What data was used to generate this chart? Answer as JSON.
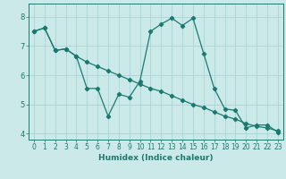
{
  "title": "",
  "xlabel": "Humidex (Indice chaleur)",
  "ylabel": "",
  "background_color": "#cce9e9",
  "line_color": "#1a7a6e",
  "grid_color": "#aad4d4",
  "xlim": [
    -0.5,
    23.5
  ],
  "ylim": [
    3.8,
    8.45
  ],
  "yticks": [
    4,
    5,
    6,
    7,
    8
  ],
  "xticks": [
    0,
    1,
    2,
    3,
    4,
    5,
    6,
    7,
    8,
    9,
    10,
    11,
    12,
    13,
    14,
    15,
    16,
    17,
    18,
    19,
    20,
    21,
    22,
    23
  ],
  "series1": {
    "x": [
      0,
      1,
      2,
      3,
      4,
      5,
      6,
      7,
      8,
      9,
      10,
      11,
      12,
      13,
      14,
      15,
      16,
      17,
      18,
      19,
      20,
      21,
      22,
      23
    ],
    "y": [
      7.5,
      7.62,
      6.85,
      6.9,
      6.65,
      6.45,
      6.3,
      6.15,
      6.0,
      5.85,
      5.7,
      5.55,
      5.45,
      5.3,
      5.15,
      5.0,
      4.9,
      4.75,
      4.6,
      4.5,
      4.35,
      4.25,
      4.2,
      4.1
    ]
  },
  "series2": {
    "x": [
      0,
      1,
      2,
      3,
      4,
      5,
      6,
      7,
      8,
      9,
      10,
      11,
      12,
      13,
      14,
      15,
      16,
      17,
      18,
      19,
      20,
      21,
      22,
      23
    ],
    "y": [
      7.5,
      7.62,
      6.85,
      6.9,
      6.65,
      5.55,
      5.55,
      4.6,
      5.35,
      5.25,
      5.8,
      7.5,
      7.75,
      7.95,
      7.7,
      7.95,
      6.75,
      5.55,
      4.85,
      4.8,
      4.2,
      4.3,
      4.3,
      4.05
    ]
  },
  "tick_labelsize": 5.5,
  "xlabel_fontsize": 6.5,
  "marker_size": 2.2
}
